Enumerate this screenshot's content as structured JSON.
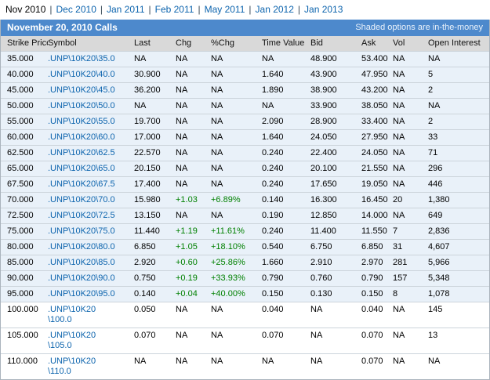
{
  "expiry_tabs": {
    "separator": "|",
    "items": [
      {
        "label": "Nov 2010",
        "active": true
      },
      {
        "label": "Dec 2010",
        "active": false
      },
      {
        "label": "Jan 2011",
        "active": false
      },
      {
        "label": "Feb 2011",
        "active": false
      },
      {
        "label": "May 2011",
        "active": false
      },
      {
        "label": "Jan 2012",
        "active": false
      },
      {
        "label": "Jan 2013",
        "active": false
      }
    ]
  },
  "table": {
    "title": "November 20, 2010 Calls",
    "note": "Shaded options are in-the-money",
    "columns": [
      "Strike Price",
      "Symbol",
      "Last",
      "Chg",
      "%Chg",
      "Time Value",
      "Bid",
      "Ask",
      "Vol",
      "Open Interest"
    ],
    "rows": [
      {
        "strike": "35.000",
        "symbol_lines": [
          ".UNP\\10K20\\35.0"
        ],
        "last": "NA",
        "chg": "NA",
        "pchg": "NA",
        "time_value": "NA",
        "bid": "48.900",
        "ask": "53.400",
        "vol": "NA",
        "open_interest": "NA",
        "in_the_money": true
      },
      {
        "strike": "40.000",
        "symbol_lines": [
          ".UNP\\10K20\\40.0"
        ],
        "last": "30.900",
        "chg": "NA",
        "pchg": "NA",
        "time_value": "1.640",
        "bid": "43.900",
        "ask": "47.950",
        "vol": "NA",
        "open_interest": "5",
        "in_the_money": true
      },
      {
        "strike": "45.000",
        "symbol_lines": [
          ".UNP\\10K20\\45.0"
        ],
        "last": "36.200",
        "chg": "NA",
        "pchg": "NA",
        "time_value": "1.890",
        "bid": "38.900",
        "ask": "43.200",
        "vol": "NA",
        "open_interest": "2",
        "in_the_money": true
      },
      {
        "strike": "50.000",
        "symbol_lines": [
          ".UNP\\10K20\\50.0"
        ],
        "last": "NA",
        "chg": "NA",
        "pchg": "NA",
        "time_value": "NA",
        "bid": "33.900",
        "ask": "38.050",
        "vol": "NA",
        "open_interest": "NA",
        "in_the_money": true
      },
      {
        "strike": "55.000",
        "symbol_lines": [
          ".UNP\\10K20\\55.0"
        ],
        "last": "19.700",
        "chg": "NA",
        "pchg": "NA",
        "time_value": "2.090",
        "bid": "28.900",
        "ask": "33.400",
        "vol": "NA",
        "open_interest": "2",
        "in_the_money": true
      },
      {
        "strike": "60.000",
        "symbol_lines": [
          ".UNP\\10K20\\60.0"
        ],
        "last": "17.000",
        "chg": "NA",
        "pchg": "NA",
        "time_value": "1.640",
        "bid": "24.050",
        "ask": "27.950",
        "vol": "NA",
        "open_interest": "33",
        "in_the_money": true
      },
      {
        "strike": "62.500",
        "symbol_lines": [
          ".UNP\\10K20\\62.5"
        ],
        "last": "22.570",
        "chg": "NA",
        "pchg": "NA",
        "time_value": "0.240",
        "bid": "22.400",
        "ask": "24.050",
        "vol": "NA",
        "open_interest": "71",
        "in_the_money": true
      },
      {
        "strike": "65.000",
        "symbol_lines": [
          ".UNP\\10K20\\65.0"
        ],
        "last": "20.150",
        "chg": "NA",
        "pchg": "NA",
        "time_value": "0.240",
        "bid": "20.100",
        "ask": "21.550",
        "vol": "NA",
        "open_interest": "296",
        "in_the_money": true
      },
      {
        "strike": "67.500",
        "symbol_lines": [
          ".UNP\\10K20\\67.5"
        ],
        "last": "17.400",
        "chg": "NA",
        "pchg": "NA",
        "time_value": "0.240",
        "bid": "17.650",
        "ask": "19.050",
        "vol": "NA",
        "open_interest": "446",
        "in_the_money": true
      },
      {
        "strike": "70.000",
        "symbol_lines": [
          ".UNP\\10K20\\70.0"
        ],
        "last": "15.980",
        "chg": "+1.03",
        "pchg": "+6.89%",
        "time_value": "0.140",
        "bid": "16.300",
        "ask": "16.450",
        "vol": "20",
        "open_interest": "1,380",
        "in_the_money": true
      },
      {
        "strike": "72.500",
        "symbol_lines": [
          ".UNP\\10K20\\72.5"
        ],
        "last": "13.150",
        "chg": "NA",
        "pchg": "NA",
        "time_value": "0.190",
        "bid": "12.850",
        "ask": "14.000",
        "vol": "NA",
        "open_interest": "649",
        "in_the_money": true
      },
      {
        "strike": "75.000",
        "symbol_lines": [
          ".UNP\\10K20\\75.0"
        ],
        "last": "11.440",
        "chg": "+1.19",
        "pchg": "+11.61%",
        "time_value": "0.240",
        "bid": "11.400",
        "ask": "11.550",
        "vol": "7",
        "open_interest": "2,836",
        "in_the_money": true
      },
      {
        "strike": "80.000",
        "symbol_lines": [
          ".UNP\\10K20\\80.0"
        ],
        "last": "6.850",
        "chg": "+1.05",
        "pchg": "+18.10%",
        "time_value": "0.540",
        "bid": "6.750",
        "ask": "6.850",
        "vol": "31",
        "open_interest": "4,607",
        "in_the_money": true
      },
      {
        "strike": "85.000",
        "symbol_lines": [
          ".UNP\\10K20\\85.0"
        ],
        "last": "2.920",
        "chg": "+0.60",
        "pchg": "+25.86%",
        "time_value": "1.660",
        "bid": "2.910",
        "ask": "2.970",
        "vol": "281",
        "open_interest": "5,966",
        "in_the_money": true
      },
      {
        "strike": "90.000",
        "symbol_lines": [
          ".UNP\\10K20\\90.0"
        ],
        "last": "0.750",
        "chg": "+0.19",
        "pchg": "+33.93%",
        "time_value": "0.790",
        "bid": "0.760",
        "ask": "0.790",
        "vol": "157",
        "open_interest": "5,348",
        "in_the_money": true
      },
      {
        "strike": "95.000",
        "symbol_lines": [
          ".UNP\\10K20\\95.0"
        ],
        "last": "0.140",
        "chg": "+0.04",
        "pchg": "+40.00%",
        "time_value": "0.150",
        "bid": "0.130",
        "ask": "0.150",
        "vol": "8",
        "open_interest": "1,078",
        "in_the_money": true
      },
      {
        "strike": "100.000",
        "symbol_lines": [
          ".UNP\\10K20",
          "\\100.0"
        ],
        "last": "0.050",
        "chg": "NA",
        "pchg": "NA",
        "time_value": "0.040",
        "bid": "NA",
        "ask": "0.040",
        "vol": "NA",
        "open_interest": "145",
        "in_the_money": false
      },
      {
        "strike": "105.000",
        "symbol_lines": [
          ".UNP\\10K20",
          "\\105.0"
        ],
        "last": "0.070",
        "chg": "NA",
        "pchg": "NA",
        "time_value": "0.070",
        "bid": "NA",
        "ask": "0.070",
        "vol": "NA",
        "open_interest": "13",
        "in_the_money": false
      },
      {
        "strike": "110.000",
        "symbol_lines": [
          ".UNP\\10K20",
          "\\110.0"
        ],
        "last": "NA",
        "chg": "NA",
        "pchg": "NA",
        "time_value": "NA",
        "bid": "NA",
        "ask": "0.070",
        "vol": "NA",
        "open_interest": "NA",
        "in_the_money": false
      }
    ]
  },
  "colors": {
    "title_bar_bg": "#4d89cc",
    "header_row_bg": "#d9d9d9",
    "in_money_row_bg": "#e9f1f9",
    "positive_value": "#008000",
    "link": "#0b63ad"
  }
}
